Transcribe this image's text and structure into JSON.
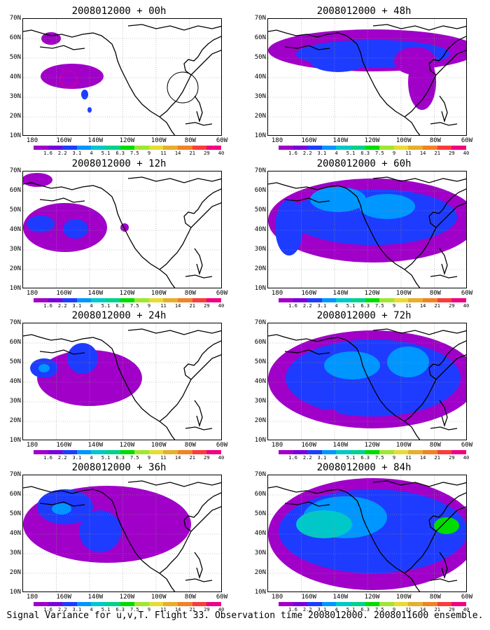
{
  "panels": [
    {
      "title": "2008012000 + 00h"
    },
    {
      "title": "2008012000 + 48h"
    },
    {
      "title": "2008012000 + 12h"
    },
    {
      "title": "2008012000 + 60h"
    },
    {
      "title": "2008012000 + 24h"
    },
    {
      "title": "2008012000 + 72h"
    },
    {
      "title": "2008012000 + 36h"
    },
    {
      "title": "2008012000 + 84h"
    }
  ],
  "lat_labels": [
    "70N",
    "60N",
    "50N",
    "40N",
    "30N",
    "20N",
    "10N"
  ],
  "lon_labels": [
    "180",
    "160W",
    "140W",
    "120W",
    "100W",
    "80W",
    "60W"
  ],
  "colorbar": {
    "colors": [
      "#a000c8",
      "#7800dc",
      "#1e3cff",
      "#0096ff",
      "#00c8c8",
      "#00d28c",
      "#00dc00",
      "#a0e632",
      "#e6dc32",
      "#e6af2d",
      "#f08228",
      "#fa3c3c",
      "#f00082"
    ],
    "labels": [
      "1.6",
      "2.2",
      "3.1",
      "4",
      "5.1",
      "6.3",
      "7.5",
      "9",
      "11",
      "14",
      "21",
      "29",
      "40"
    ]
  },
  "caption": "Signal Variance for u,v,T. Flight 33. Observation time 2008012000. 2008011600 ensemble."
}
